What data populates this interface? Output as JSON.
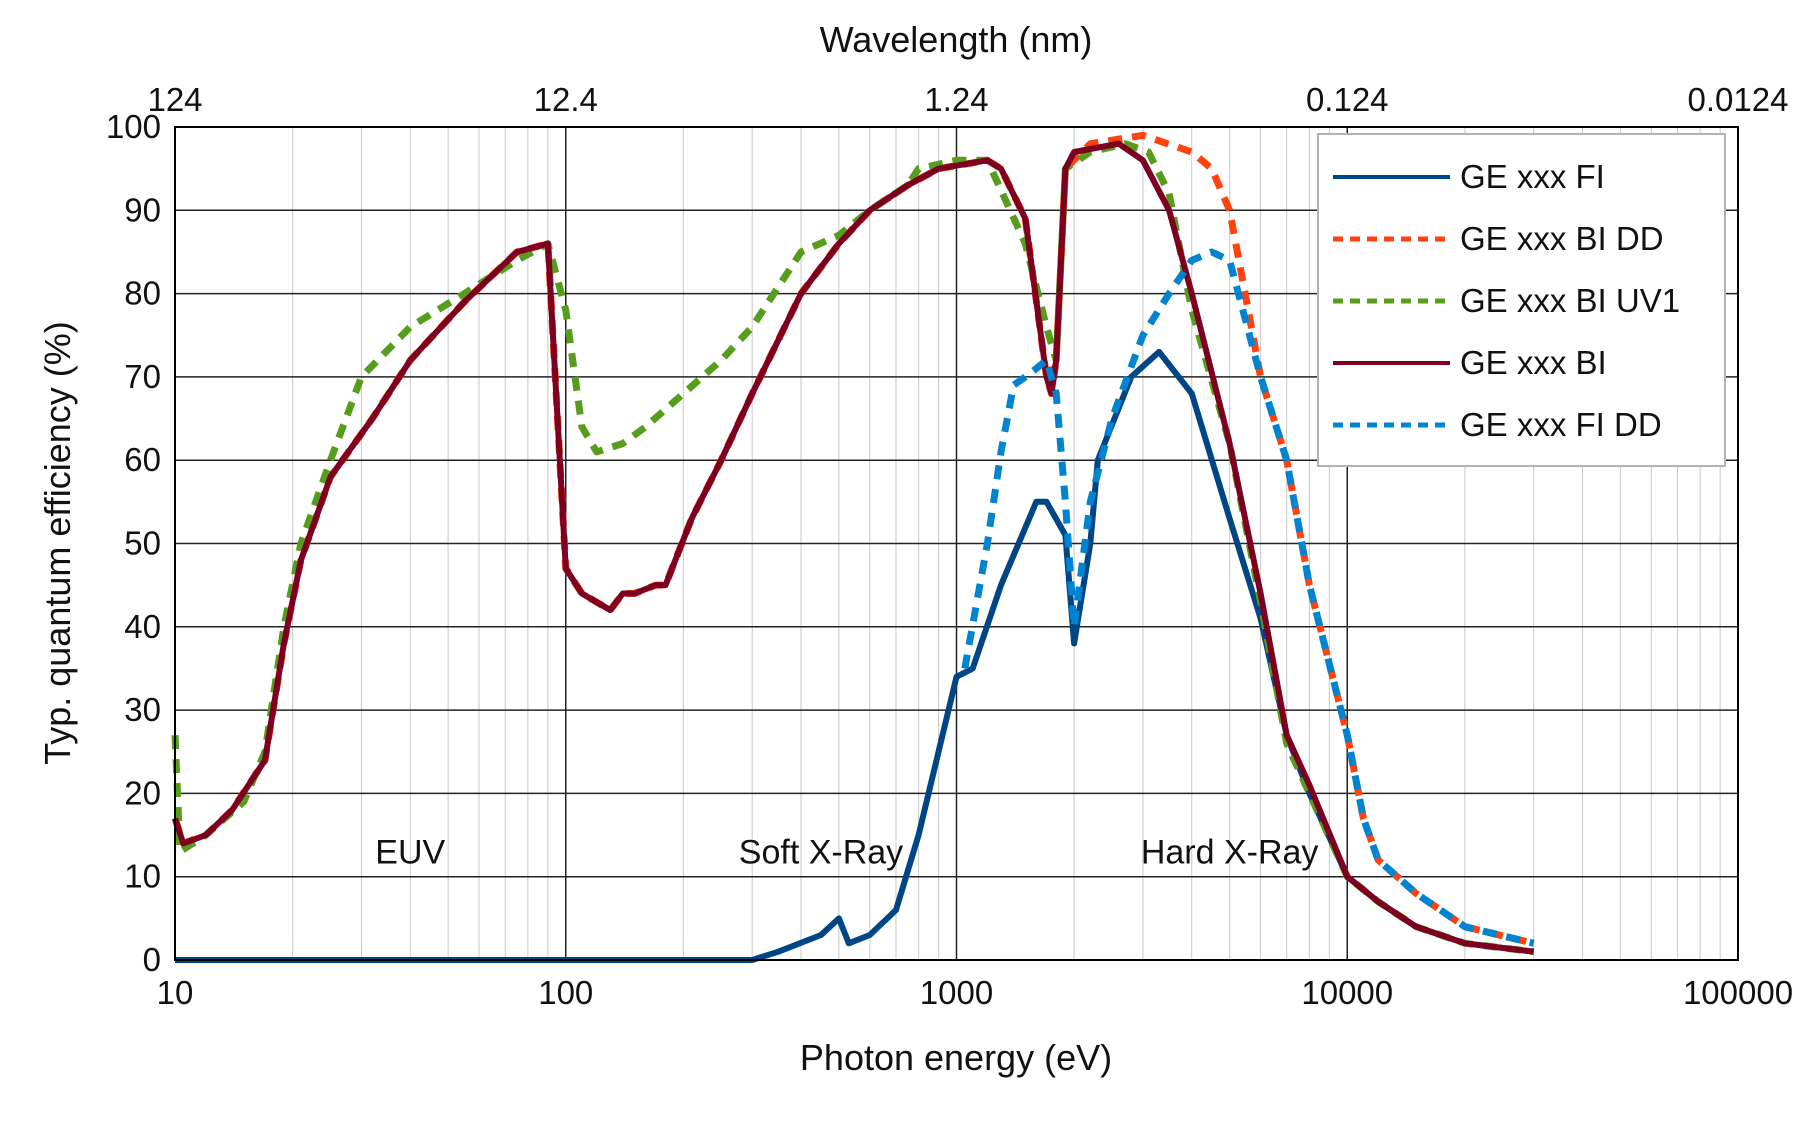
{
  "chart_data": {
    "type": "line",
    "xlabel": "Photon energy (eV)",
    "ylabel": "Typ. quantum efficiency (%)",
    "x2label": "Wavelength (nm)",
    "xscale": "log",
    "xlim": [
      10,
      100000
    ],
    "ylim": [
      0,
      100
    ],
    "x_ticks": [
      "10",
      "100",
      "1000",
      "10000",
      "100000"
    ],
    "y_ticks": [
      "0",
      "10",
      "20",
      "30",
      "40",
      "50",
      "60",
      "70",
      "80",
      "90",
      "100"
    ],
    "x2_ticks": [
      "124",
      "12.4",
      "1.24",
      "0.124",
      "0.0124"
    ],
    "grid": true,
    "legend_position": "top-right",
    "annotations": [
      {
        "text": "EUV",
        "x": 40,
        "y": 13
      },
      {
        "text": "Soft X-Ray",
        "x": 450,
        "y": 13
      },
      {
        "text": "Hard X-Ray",
        "x": 5000,
        "y": 13
      }
    ],
    "series": [
      {
        "name": "GE xxx FI",
        "color": "#004586",
        "dash": "solid",
        "points": [
          [
            10,
            0
          ],
          [
            100,
            0
          ],
          [
            300,
            0
          ],
          [
            350,
            1
          ],
          [
            450,
            3
          ],
          [
            500,
            5
          ],
          [
            530,
            2
          ],
          [
            600,
            3
          ],
          [
            700,
            6
          ],
          [
            800,
            15
          ],
          [
            1000,
            34
          ],
          [
            1100,
            35
          ],
          [
            1300,
            45
          ],
          [
            1600,
            55
          ],
          [
            1700,
            55
          ],
          [
            1900,
            51
          ],
          [
            2000,
            38
          ],
          [
            2200,
            50
          ],
          [
            2300,
            60
          ],
          [
            2800,
            70
          ],
          [
            3300,
            73
          ],
          [
            4000,
            68
          ],
          [
            5000,
            53
          ],
          [
            6000,
            41
          ],
          [
            7000,
            27
          ],
          [
            8000,
            20
          ],
          [
            10000,
            10
          ],
          [
            12000,
            7
          ],
          [
            15000,
            4
          ],
          [
            20000,
            2
          ],
          [
            30000,
            1
          ]
        ]
      },
      {
        "name": "GE xxx BI DD",
        "color": "#ff420e",
        "dash": "dashed",
        "points": [
          [
            10,
            17
          ],
          [
            10.5,
            14
          ],
          [
            12,
            15
          ],
          [
            14,
            18
          ],
          [
            17,
            24
          ],
          [
            19,
            38
          ],
          [
            21,
            48
          ],
          [
            25,
            58
          ],
          [
            32,
            65
          ],
          [
            40,
            72
          ],
          [
            55,
            79
          ],
          [
            75,
            85
          ],
          [
            90,
            86
          ],
          [
            100,
            47
          ],
          [
            110,
            44
          ],
          [
            130,
            42
          ],
          [
            140,
            44
          ],
          [
            150,
            44
          ],
          [
            170,
            45
          ],
          [
            180,
            45
          ],
          [
            210,
            53
          ],
          [
            250,
            60
          ],
          [
            300,
            68
          ],
          [
            400,
            80
          ],
          [
            500,
            86
          ],
          [
            600,
            90
          ],
          [
            750,
            93
          ],
          [
            900,
            95
          ],
          [
            1200,
            96
          ],
          [
            1300,
            95
          ],
          [
            1500,
            89
          ],
          [
            1700,
            70
          ],
          [
            1750,
            68
          ],
          [
            1800,
            72
          ],
          [
            1900,
            95
          ],
          [
            2200,
            98
          ],
          [
            3000,
            99
          ],
          [
            4000,
            97
          ],
          [
            4500,
            95
          ],
          [
            5000,
            90
          ],
          [
            6000,
            70
          ],
          [
            7000,
            60
          ],
          [
            8000,
            45
          ],
          [
            10000,
            27
          ],
          [
            11000,
            17
          ],
          [
            12000,
            12
          ],
          [
            15000,
            8
          ],
          [
            20000,
            4
          ],
          [
            30000,
            2
          ]
        ]
      },
      {
        "name": "GE xxx BI UV1",
        "color": "#579d1c",
        "dash": "dashed",
        "points": [
          [
            10,
            27
          ],
          [
            10.3,
            13
          ],
          [
            12,
            15
          ],
          [
            15,
            19
          ],
          [
            17,
            25
          ],
          [
            19,
            40
          ],
          [
            21,
            50
          ],
          [
            25,
            60
          ],
          [
            30,
            70
          ],
          [
            40,
            76
          ],
          [
            55,
            80
          ],
          [
            75,
            84
          ],
          [
            90,
            86
          ],
          [
            100,
            78
          ],
          [
            110,
            64
          ],
          [
            120,
            61
          ],
          [
            140,
            62
          ],
          [
            160,
            64
          ],
          [
            200,
            68
          ],
          [
            250,
            72
          ],
          [
            300,
            76
          ],
          [
            400,
            85
          ],
          [
            500,
            87
          ],
          [
            600,
            90
          ],
          [
            750,
            93
          ],
          [
            800,
            95
          ],
          [
            1000,
            96
          ],
          [
            1200,
            96
          ],
          [
            1500,
            86
          ],
          [
            1700,
            76
          ],
          [
            1800,
            72
          ],
          [
            1900,
            95
          ],
          [
            2200,
            97
          ],
          [
            2700,
            98
          ],
          [
            3100,
            97
          ],
          [
            3500,
            92
          ],
          [
            4000,
            78
          ],
          [
            5000,
            62
          ],
          [
            6000,
            43
          ],
          [
            7000,
            26
          ],
          [
            8000,
            20
          ],
          [
            10000,
            10
          ],
          [
            12000,
            7
          ],
          [
            15000,
            4
          ],
          [
            20000,
            2
          ],
          [
            30000,
            1
          ]
        ]
      },
      {
        "name": "GE xxx BI",
        "color": "#7e0021",
        "dash": "solid",
        "points": [
          [
            10,
            17
          ],
          [
            10.5,
            14
          ],
          [
            12,
            15
          ],
          [
            14,
            18
          ],
          [
            17,
            24
          ],
          [
            19,
            38
          ],
          [
            21,
            48
          ],
          [
            25,
            58
          ],
          [
            32,
            65
          ],
          [
            40,
            72
          ],
          [
            55,
            79
          ],
          [
            75,
            85
          ],
          [
            90,
            86
          ],
          [
            100,
            47
          ],
          [
            110,
            44
          ],
          [
            130,
            42
          ],
          [
            140,
            44
          ],
          [
            150,
            44
          ],
          [
            170,
            45
          ],
          [
            180,
            45
          ],
          [
            210,
            53
          ],
          [
            250,
            60
          ],
          [
            300,
            68
          ],
          [
            400,
            80
          ],
          [
            500,
            86
          ],
          [
            600,
            90
          ],
          [
            750,
            93
          ],
          [
            900,
            95
          ],
          [
            1200,
            96
          ],
          [
            1300,
            95
          ],
          [
            1500,
            89
          ],
          [
            1700,
            70
          ],
          [
            1750,
            68
          ],
          [
            1800,
            72
          ],
          [
            1900,
            95
          ],
          [
            2000,
            97
          ],
          [
            2600,
            98
          ],
          [
            3000,
            96
          ],
          [
            3500,
            90
          ],
          [
            4000,
            80
          ],
          [
            5000,
            62
          ],
          [
            6000,
            44
          ],
          [
            7000,
            27
          ],
          [
            8000,
            21
          ],
          [
            10000,
            10
          ],
          [
            12000,
            7
          ],
          [
            15000,
            4
          ],
          [
            20000,
            2
          ],
          [
            30000,
            1
          ]
        ]
      },
      {
        "name": "GE xxx FI DD",
        "color": "#0084d1",
        "dash": "dashed",
        "points": [
          [
            1050,
            35
          ],
          [
            1200,
            50
          ],
          [
            1300,
            61
          ],
          [
            1400,
            69
          ],
          [
            1500,
            70
          ],
          [
            1600,
            71
          ],
          [
            1700,
            72
          ],
          [
            1800,
            68
          ],
          [
            1900,
            55
          ],
          [
            2000,
            40
          ],
          [
            2200,
            55
          ],
          [
            2500,
            65
          ],
          [
            3000,
            75
          ],
          [
            3500,
            80
          ],
          [
            4000,
            84
          ],
          [
            4500,
            85
          ],
          [
            5000,
            84
          ],
          [
            6000,
            70
          ],
          [
            7000,
            60
          ],
          [
            8000,
            45
          ],
          [
            10000,
            27
          ],
          [
            11000,
            17
          ],
          [
            12000,
            12
          ],
          [
            15000,
            8
          ],
          [
            20000,
            4
          ],
          [
            30000,
            2
          ]
        ]
      }
    ]
  }
}
